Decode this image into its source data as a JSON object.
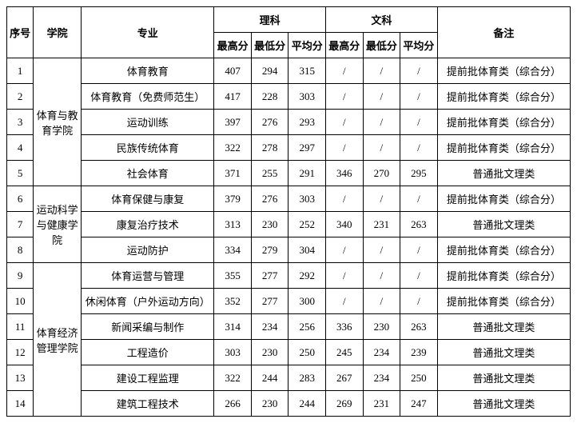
{
  "headers": {
    "index": "序号",
    "college": "学院",
    "major": "专业",
    "science": "理科",
    "liberal": "文科",
    "remark": "备注",
    "max": "最高分",
    "min": "最低分",
    "avg": "平均分"
  },
  "colleges": [
    {
      "name": "体育与教育学院",
      "rowspan": 5
    },
    {
      "name": "运动科学与健康学院",
      "rowspan": 3
    },
    {
      "name": "体育经济管理学院",
      "rowspan": 6
    }
  ],
  "rows": [
    {
      "idx": "1",
      "collegeRef": 0,
      "major": "体育教育",
      "s_max": "407",
      "s_min": "294",
      "s_avg": "315",
      "l_max": "/",
      "l_min": "/",
      "l_avg": "/",
      "remark": "提前批体育类（综合分）"
    },
    {
      "idx": "2",
      "collegeRef": 0,
      "major": "体育教育（免费师范生）",
      "s_max": "417",
      "s_min": "228",
      "s_avg": "303",
      "l_max": "/",
      "l_min": "/",
      "l_avg": "/",
      "remark": "提前批体育类（综合分）"
    },
    {
      "idx": "3",
      "collegeRef": 0,
      "major": "运动训练",
      "s_max": "397",
      "s_min": "276",
      "s_avg": "293",
      "l_max": "/",
      "l_min": "/",
      "l_avg": "/",
      "remark": "提前批体育类（综合分）"
    },
    {
      "idx": "4",
      "collegeRef": 0,
      "major": "民族传统体育",
      "s_max": "322",
      "s_min": "278",
      "s_avg": "297",
      "l_max": "/",
      "l_min": "/",
      "l_avg": "/",
      "remark": "提前批体育类（综合分）"
    },
    {
      "idx": "5",
      "collegeRef": 0,
      "major": "社会体育",
      "s_max": "371",
      "s_min": "255",
      "s_avg": "291",
      "l_max": "346",
      "l_min": "270",
      "l_avg": "295",
      "remark": "普通批文理类"
    },
    {
      "idx": "6",
      "collegeRef": 1,
      "major": "体育保健与康复",
      "s_max": "379",
      "s_min": "276",
      "s_avg": "303",
      "l_max": "/",
      "l_min": "/",
      "l_avg": "/",
      "remark": "提前批体育类（综合分）"
    },
    {
      "idx": "7",
      "collegeRef": 1,
      "major": "康复治疗技术",
      "s_max": "313",
      "s_min": "230",
      "s_avg": "252",
      "l_max": "340",
      "l_min": "231",
      "l_avg": "263",
      "remark": "普通批文理类"
    },
    {
      "idx": "8",
      "collegeRef": 1,
      "major": "运动防护",
      "s_max": "334",
      "s_min": "279",
      "s_avg": "304",
      "l_max": "/",
      "l_min": "/",
      "l_avg": "/",
      "remark": "提前批体育类（综合分）"
    },
    {
      "idx": "9",
      "collegeRef": 2,
      "major": "体育运营与管理",
      "s_max": "355",
      "s_min": "277",
      "s_avg": "292",
      "l_max": "/",
      "l_min": "/",
      "l_avg": "/",
      "remark": "提前批体育类（综合分）"
    },
    {
      "idx": "10",
      "collegeRef": 2,
      "major": "休闲体育（户外运动方向）",
      "s_max": "352",
      "s_min": "277",
      "s_avg": "300",
      "l_max": "/",
      "l_min": "/",
      "l_avg": "/",
      "remark": "提前批体育类（综合分）"
    },
    {
      "idx": "11",
      "collegeRef": 2,
      "major": "新闻采编与制作",
      "s_max": "314",
      "s_min": "234",
      "s_avg": "256",
      "l_max": "336",
      "l_min": "230",
      "l_avg": "263",
      "remark": "普通批文理类"
    },
    {
      "idx": "12",
      "collegeRef": 2,
      "major": "工程造价",
      "s_max": "303",
      "s_min": "230",
      "s_avg": "250",
      "l_max": "245",
      "l_min": "234",
      "l_avg": "239",
      "remark": "普通批文理类"
    },
    {
      "idx": "13",
      "collegeRef": 2,
      "major": "建设工程监理",
      "s_max": "322",
      "s_min": "244",
      "s_avg": "283",
      "l_max": "267",
      "l_min": "234",
      "l_avg": "250",
      "remark": "普通批文理类"
    },
    {
      "idx": "14",
      "collegeRef": 2,
      "major": "建筑工程技术",
      "s_max": "266",
      "s_min": "230",
      "s_avg": "244",
      "l_max": "269",
      "l_min": "231",
      "l_avg": "247",
      "remark": "普通批文理类"
    }
  ]
}
